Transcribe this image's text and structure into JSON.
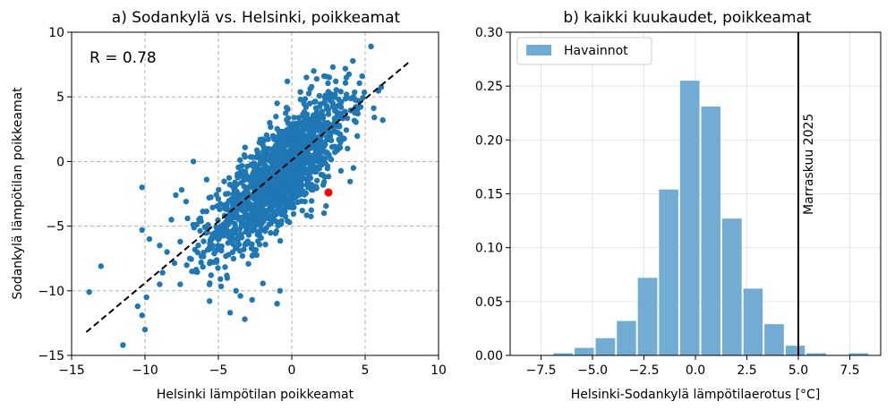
{
  "chart_data": [
    {
      "type": "scatter",
      "title": "a) Sodankylä vs. Helsinki, poikkeamat",
      "xlabel": "Helsinki lämpötilan poikkeamat",
      "ylabel": "Sodankylä lämpötilan poikkeamat",
      "xlim": [
        -15,
        10
      ],
      "ylim": [
        -15,
        10
      ],
      "xticks": [
        -15,
        -10,
        -5,
        0,
        5,
        10
      ],
      "yticks": [
        -15,
        -10,
        -5,
        0,
        5,
        10
      ],
      "xtick_labels": [
        "−15",
        "−10",
        "−5",
        "0",
        "5",
        "10"
      ],
      "ytick_labels": [
        "−15",
        "−10",
        "−5",
        "0",
        "5",
        "10"
      ],
      "grid": "dashed",
      "annotation": "R = 0.78",
      "point_color": "#1f77b4",
      "cloud": {
        "n_points": 1500,
        "x_mean": -0.8,
        "x_sd": 2.3,
        "y_mean": -1.0,
        "y_sd": 3.0,
        "r": 0.78
      },
      "outliers": [
        [
          -13.8,
          -10.1
        ],
        [
          -13.0,
          -8.1
        ],
        [
          -11.5,
          -14.2
        ],
        [
          -10.5,
          -11.2
        ],
        [
          -10.2,
          -11.9
        ],
        [
          -10.0,
          -13.0
        ],
        [
          -10.2,
          -2.0
        ],
        [
          -9.9,
          -10.5
        ],
        [
          -9.0,
          -9.5
        ],
        [
          -10.2,
          -5.3
        ],
        [
          -9.7,
          -6.0
        ],
        [
          -9.0,
          -6.5
        ],
        [
          -8.8,
          -8.6
        ],
        [
          -8.5,
          -7.0
        ],
        [
          -8.2,
          -4.5
        ],
        [
          -7.9,
          -2.6
        ],
        [
          -7.6,
          -6.2
        ],
        [
          -7.6,
          -9.5
        ],
        [
          -7.5,
          -2.2
        ],
        [
          -7.2,
          -3.1
        ],
        [
          -7.1,
          -4.4
        ],
        [
          -6.8,
          -8.5
        ],
        [
          -6.7,
          0.0
        ],
        [
          -5.8,
          -1.4
        ],
        [
          -5.7,
          -4.9
        ],
        [
          -5.6,
          -10.8
        ],
        [
          -5.5,
          -8.8
        ],
        [
          -5.4,
          -6.5
        ],
        [
          -4.2,
          -11.7
        ],
        [
          -3.8,
          -10.0
        ],
        [
          -3.5,
          -10.4
        ],
        [
          -3.2,
          -12.2
        ],
        [
          -2.7,
          -10.7
        ],
        [
          -1.0,
          -11.0
        ],
        [
          -0.8,
          -10.0
        ],
        [
          -1.5,
          3.0
        ],
        [
          -1.0,
          4.5
        ],
        [
          -0.3,
          6.2
        ],
        [
          1.0,
          6.5
        ],
        [
          1.5,
          7.0
        ],
        [
          2.2,
          6.6
        ],
        [
          2.8,
          7.3
        ],
        [
          3.0,
          6.2
        ],
        [
          4.2,
          5.0
        ],
        [
          4.5,
          3.7
        ],
        [
          5.4,
          8.9
        ],
        [
          6.2,
          3.2
        ],
        [
          4.8,
          6.6
        ],
        [
          3.3,
          2.1
        ],
        [
          2.2,
          -4.0
        ],
        [
          2.2,
          -1.6
        ],
        [
          0.9,
          -3.1
        ],
        [
          4.2,
          -0.5
        ],
        [
          3.8,
          1.0
        ]
      ],
      "highlight": {
        "x": 2.5,
        "y": -2.4,
        "color": "#ff0000"
      },
      "fit_line": {
        "x": [
          -14,
          8
        ],
        "y": [
          -13.2,
          7.7
        ],
        "style": "dashed",
        "color": "#000000"
      }
    },
    {
      "type": "bar",
      "title": "b) kaikki kuukaudet, poikkeamat",
      "xlabel": "Helsinki-Sodankylä lämpötilaerotus [°C]",
      "ylabel": "",
      "xlim": [
        -9.0,
        9.0
      ],
      "ylim": [
        0,
        0.3
      ],
      "xticks": [
        -7.5,
        -5.0,
        -2.5,
        0.0,
        2.5,
        5.0,
        7.5
      ],
      "xtick_labels": [
        "−7.5",
        "−5.0",
        "−2.5",
        "0.0",
        "2.5",
        "5.0",
        "7.5"
      ],
      "yticks": [
        0.0,
        0.05,
        0.1,
        0.15,
        0.2,
        0.25,
        0.3
      ],
      "ytick_labels": [
        "0.00",
        "0.05",
        "0.10",
        "0.15",
        "0.20",
        "0.25",
        "0.30"
      ],
      "grid": "solid-light",
      "series": [
        {
          "name": "Havainnot",
          "color": "#72acd3",
          "bins": [
            [
              -6.94,
              -5.91,
              0.002
            ],
            [
              -5.91,
              -4.89,
              0.007
            ],
            [
              -4.89,
              -3.86,
              0.016
            ],
            [
              -3.86,
              -2.84,
              0.032
            ],
            [
              -2.84,
              -1.81,
              0.072
            ],
            [
              -1.81,
              -0.79,
              0.154
            ],
            [
              -0.79,
              0.24,
              0.255
            ],
            [
              0.24,
              1.26,
              0.231
            ],
            [
              1.26,
              2.29,
              0.127
            ],
            [
              2.29,
              3.31,
              0.062
            ],
            [
              3.31,
              4.34,
              0.029
            ],
            [
              4.34,
              5.36,
              0.009
            ],
            [
              5.36,
              6.39,
              0.002
            ],
            [
              6.39,
              7.41,
              0.0004
            ],
            [
              7.41,
              8.44,
              0.002
            ]
          ]
        }
      ],
      "vline": {
        "x": 5.0,
        "label": "Marraskuu 2025",
        "color": "#000000"
      },
      "legend": {
        "position": "top-left",
        "label": "Havainnot"
      }
    }
  ]
}
